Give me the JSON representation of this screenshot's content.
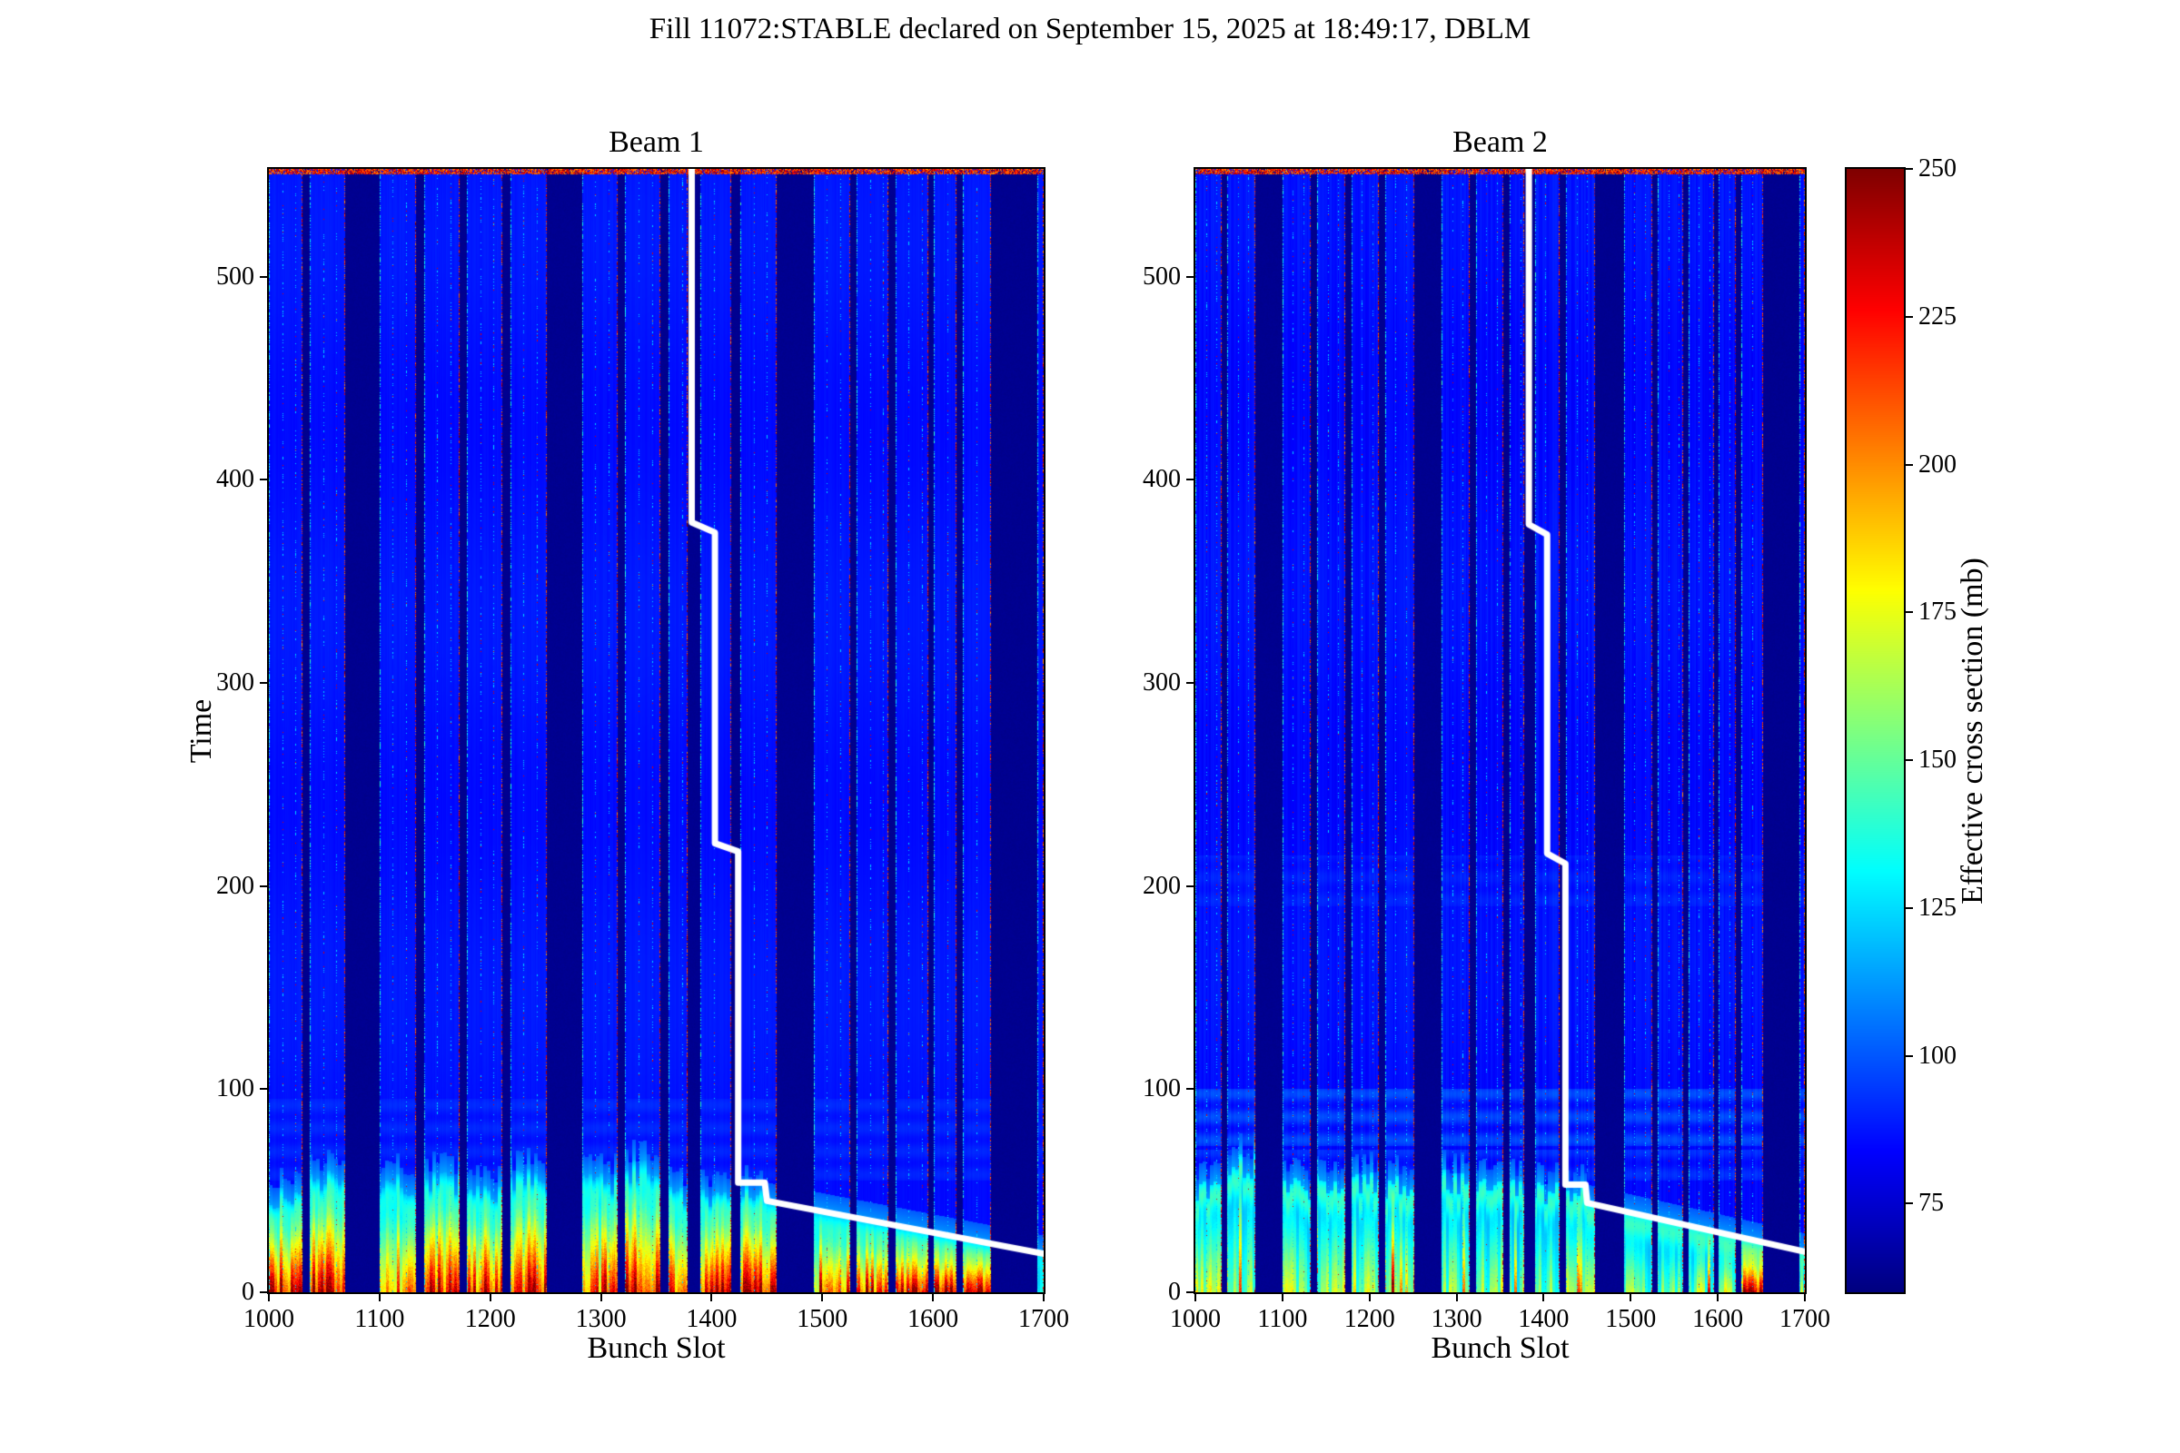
{
  "figure": {
    "title": "Fill 11072:STABLE declared on September 15, 2025 at 18:49:17, DBLM",
    "background": "#ffffff"
  },
  "chart_data": {
    "type": "heatmap",
    "colormap": "jet",
    "value_range": [
      60,
      250
    ],
    "xlabel": "Bunch Slot",
    "ylabel": "Time",
    "xlim": [
      1000,
      1700
    ],
    "ylim": [
      0,
      553
    ],
    "xticks": [
      1000,
      1100,
      1200,
      1300,
      1400,
      1500,
      1600,
      1700
    ],
    "yticks": [
      0,
      100,
      200,
      300,
      400,
      500
    ],
    "grid": false,
    "colorbar": {
      "label": "Effective cross section (mb)",
      "ticks": [
        250,
        225,
        200,
        175,
        150,
        125,
        100,
        75
      ],
      "top_color": "#800000",
      "bottom_color": "#00008a"
    },
    "bunch_trains": [
      [
        1000,
        1030
      ],
      [
        1037,
        1069
      ],
      [
        1100,
        1133
      ],
      [
        1140,
        1172
      ],
      [
        1179,
        1211
      ],
      [
        1218,
        1251
      ],
      [
        1283,
        1315
      ],
      [
        1322,
        1354
      ],
      [
        1361,
        1378
      ],
      [
        1390,
        1418
      ],
      [
        1426,
        1459
      ],
      [
        1492,
        1525
      ],
      [
        1531,
        1560
      ],
      [
        1566,
        1596
      ],
      [
        1601,
        1621
      ],
      [
        1627,
        1652
      ],
      [
        1694,
        1700
      ]
    ],
    "gap_value": 62,
    "top_edge_noise_value_range": [
      195,
      250
    ],
    "beams": [
      {
        "title": "Beam 1",
        "base_value": 87,
        "col_noise": 1.3,
        "hot_edge_value": 110,
        "hot_top_time": 52,
        "heat_power": 1.0,
        "flash_amp": 15,
        "train_peak_values": [
          238,
          252,
          210,
          242,
          230,
          250,
          218,
          248,
          228,
          240,
          252,
          205,
          235,
          246,
          240,
          250,
          135
        ],
        "bands": [
          {
            "t0": 55,
            "t1": 95,
            "amp": 5
          }
        ],
        "dump_line": [
          [
            1382,
            553
          ],
          [
            1382,
            379
          ],
          [
            1403,
            374
          ],
          [
            1403,
            221
          ],
          [
            1424,
            217
          ],
          [
            1424,
            54
          ],
          [
            1448,
            54
          ],
          [
            1450,
            45
          ],
          [
            1700,
            19
          ]
        ]
      },
      {
        "title": "Beam 2",
        "base_value": 86,
        "col_noise": 3.0,
        "hot_edge_value": 112,
        "hot_top_time": 55,
        "heat_power": 1.15,
        "flash_amp": 26,
        "train_peak_values": [
          170,
          172,
          165,
          172,
          170,
          192,
          162,
          168,
          158,
          163,
          170,
          156,
          162,
          166,
          172,
          238,
          130
        ],
        "bands": [
          {
            "t0": 72,
            "t1": 100,
            "amp": 13
          },
          {
            "t0": 55,
            "t1": 70,
            "amp": 8
          },
          {
            "t0": 190,
            "t1": 215,
            "amp": 4
          }
        ],
        "dump_line": [
          [
            1383,
            553
          ],
          [
            1383,
            378
          ],
          [
            1404,
            373
          ],
          [
            1404,
            216
          ],
          [
            1425,
            211
          ],
          [
            1425,
            53
          ],
          [
            1448,
            53
          ],
          [
            1450,
            44
          ],
          [
            1700,
            20
          ]
        ]
      }
    ],
    "dump_line_color": "#ffffff"
  }
}
